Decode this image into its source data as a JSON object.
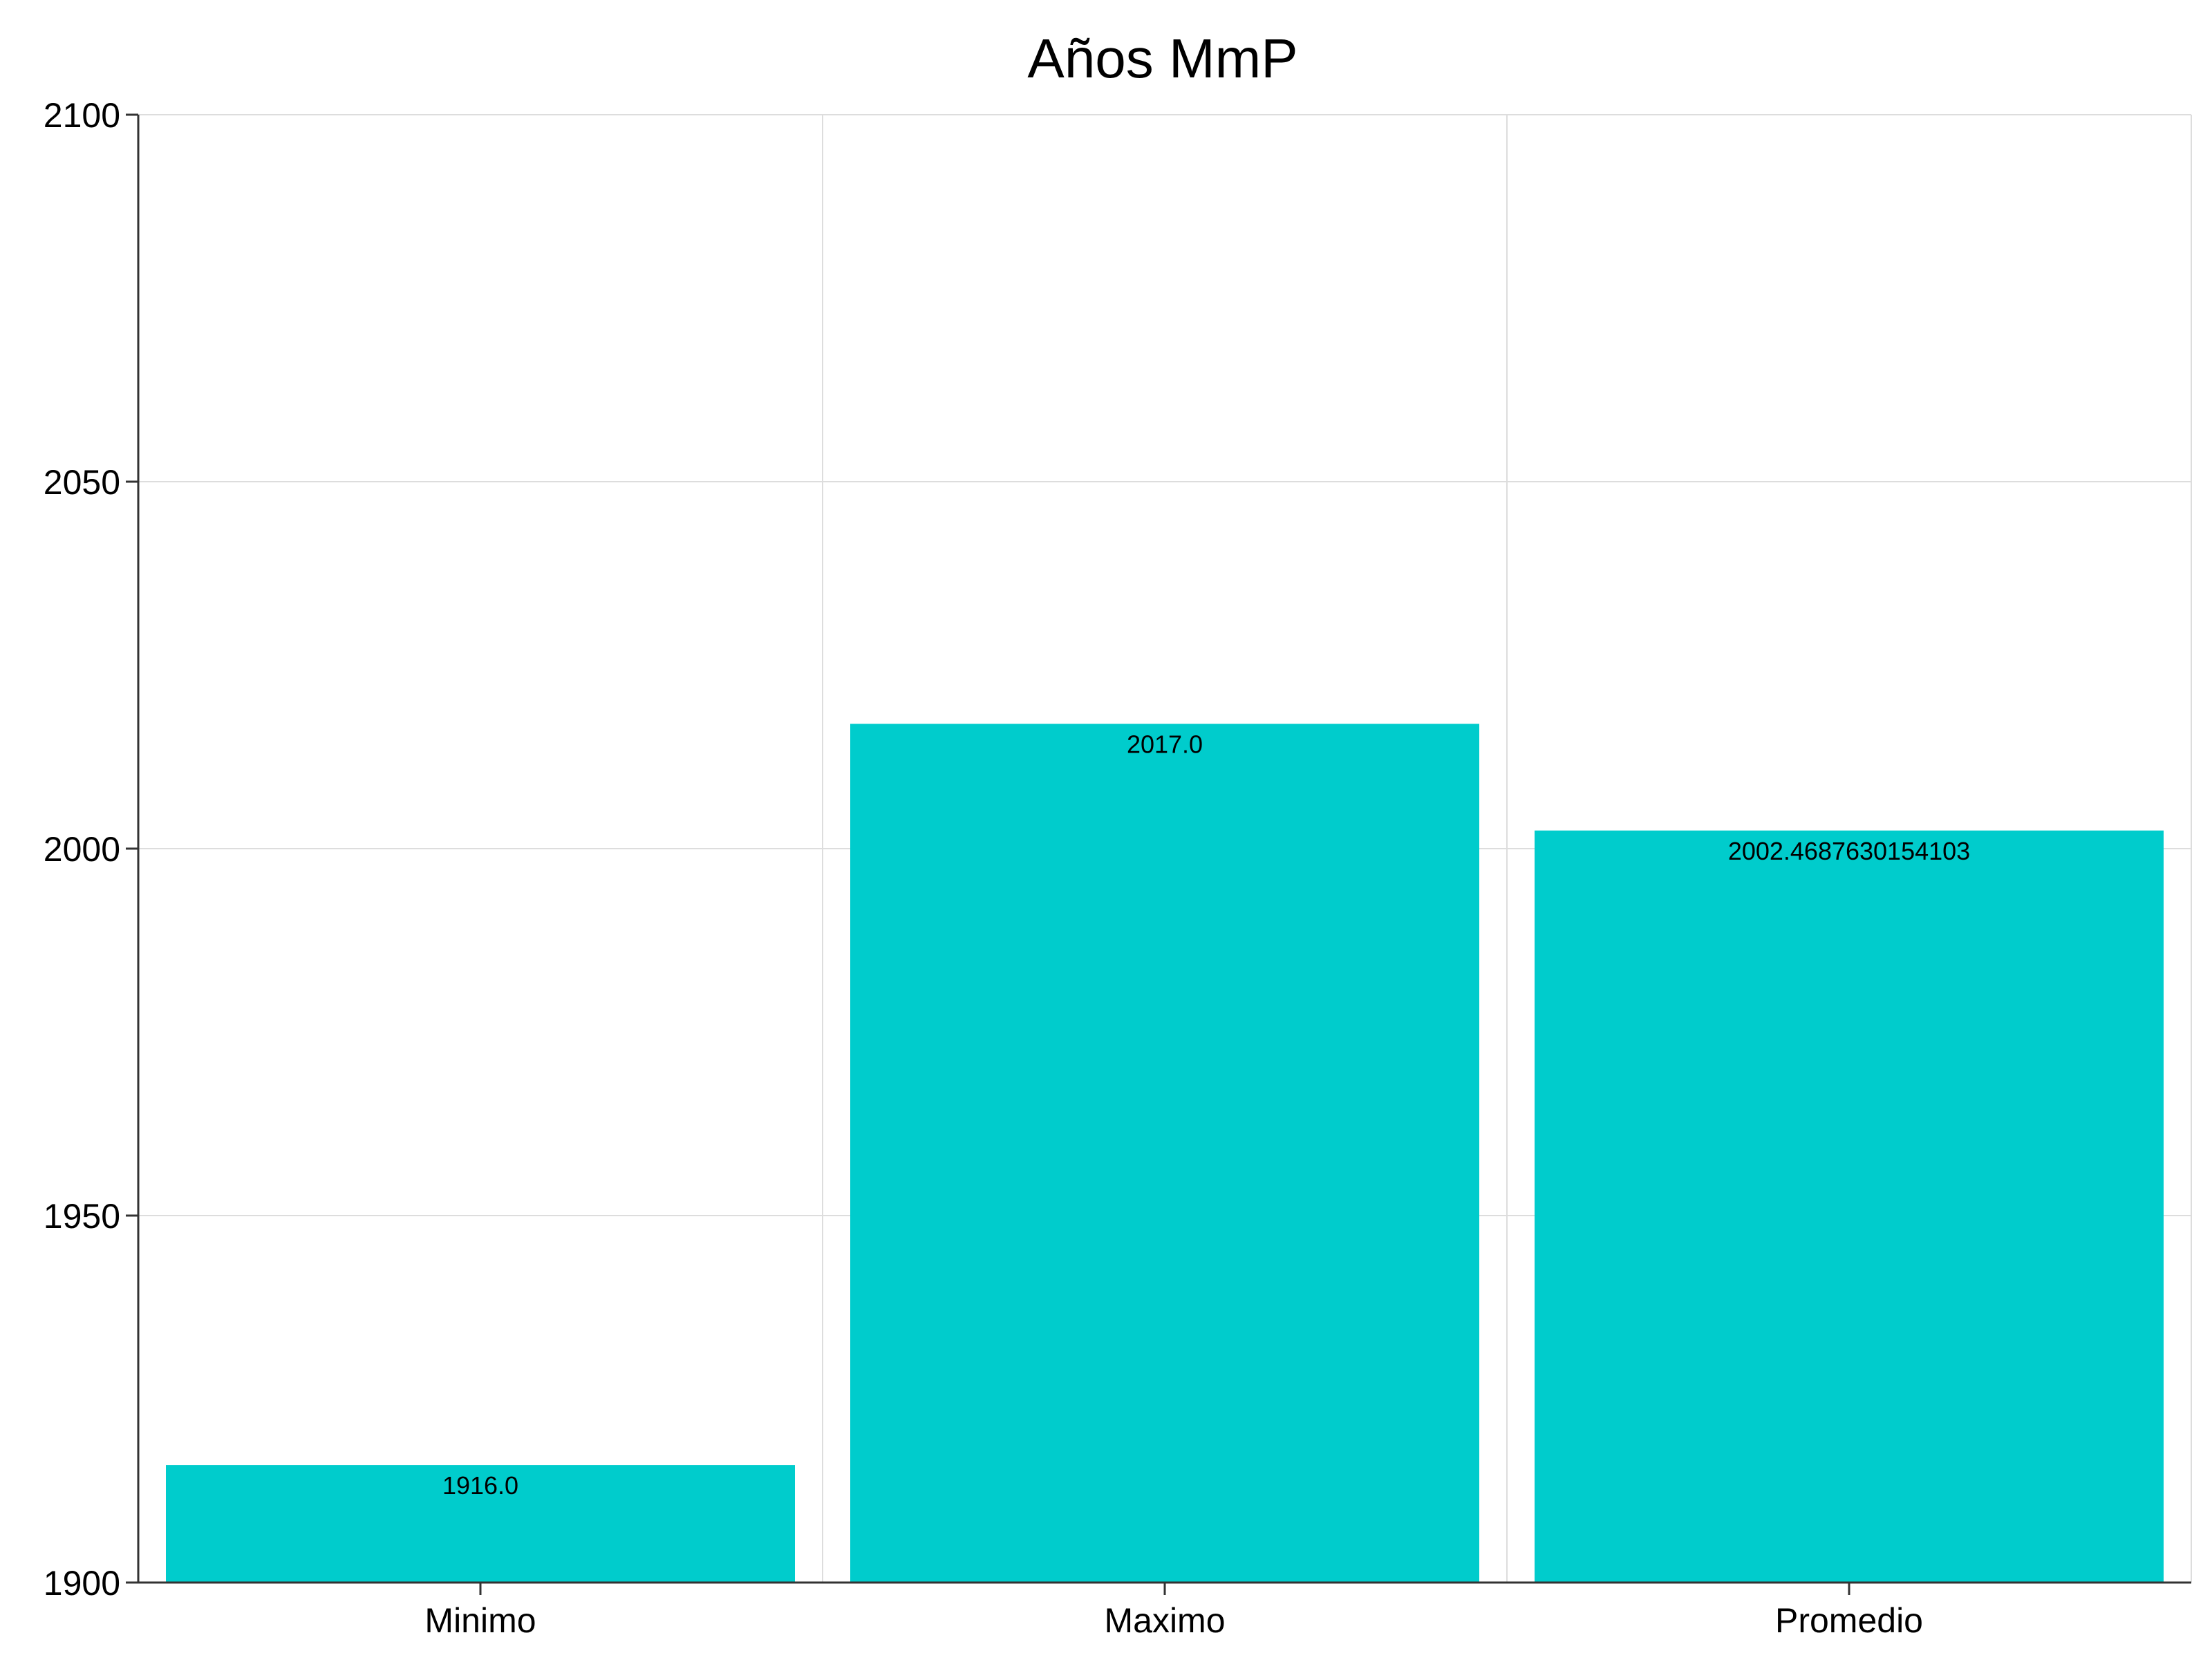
{
  "chart_data": {
    "type": "bar",
    "title": "Años MmP",
    "xlabel": "",
    "ylabel": "",
    "categories": [
      "Minimo",
      "Maximo",
      "Promedio"
    ],
    "values": [
      1916.0,
      2017.0,
      2002.4687630154103
    ],
    "value_labels": [
      "1916.0",
      "2017.0",
      "2002.4687630154103"
    ],
    "ylim": [
      1900,
      2100
    ],
    "yticks": [
      1900,
      1950,
      2000,
      2050,
      2100
    ],
    "ytick_labels": [
      "1900",
      "1950",
      "2000",
      "2050",
      "2100"
    ],
    "grid": true,
    "legend": "none",
    "colors": {
      "bar": "#00cccc",
      "grid": "#dddddd",
      "axis": "#333333",
      "text": "#000000"
    }
  }
}
